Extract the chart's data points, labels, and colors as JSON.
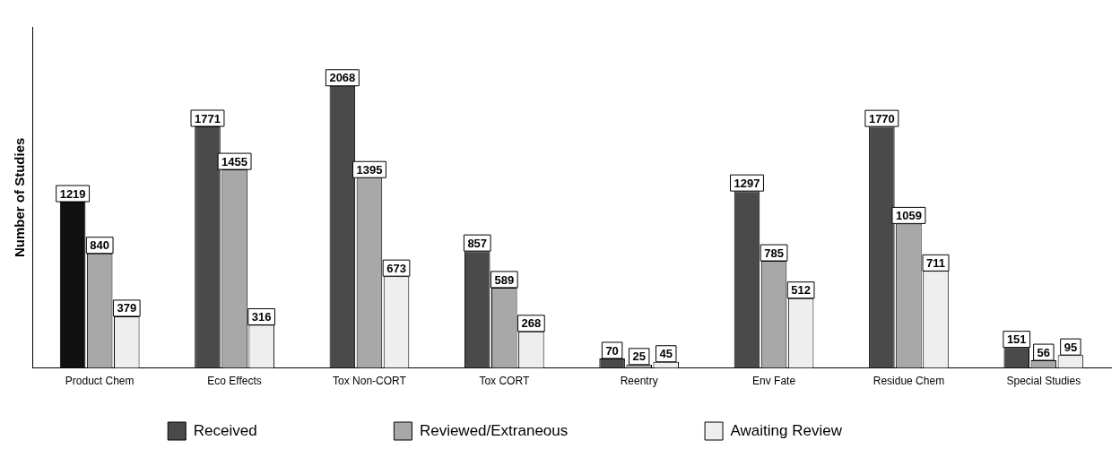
{
  "chart_data": {
    "type": "bar",
    "ylabel": "Number of Studies",
    "categories": [
      "Product Chem",
      "Eco Effects",
      "Tox Non-CORT",
      "Tox CORT",
      "Reentry",
      "Env Fate",
      "Residue Chem",
      "Special Studies"
    ],
    "series": [
      {
        "name": "Received",
        "color": "#4a4a4a",
        "colors": [
          "#111111",
          "#4a4a4a",
          "#4a4a4a",
          "#4a4a4a",
          "#4a4a4a",
          "#4a4a4a",
          "#4a4a4a",
          "#4a4a4a"
        ],
        "values": [
          1219,
          1771,
          2068,
          857,
          70,
          1297,
          1770,
          151
        ]
      },
      {
        "name": "Reviewed/Extraneous",
        "color": "#a8a8a8",
        "values": [
          840,
          1455,
          1395,
          589,
          25,
          785,
          1059,
          56
        ]
      },
      {
        "name": "Awaiting Review",
        "color": "#eeeeee",
        "values": [
          379,
          316,
          673,
          268,
          45,
          512,
          711,
          95
        ]
      }
    ],
    "data_labels": true,
    "grid": false,
    "legend": "bottom",
    "tick_labels": "x"
  }
}
